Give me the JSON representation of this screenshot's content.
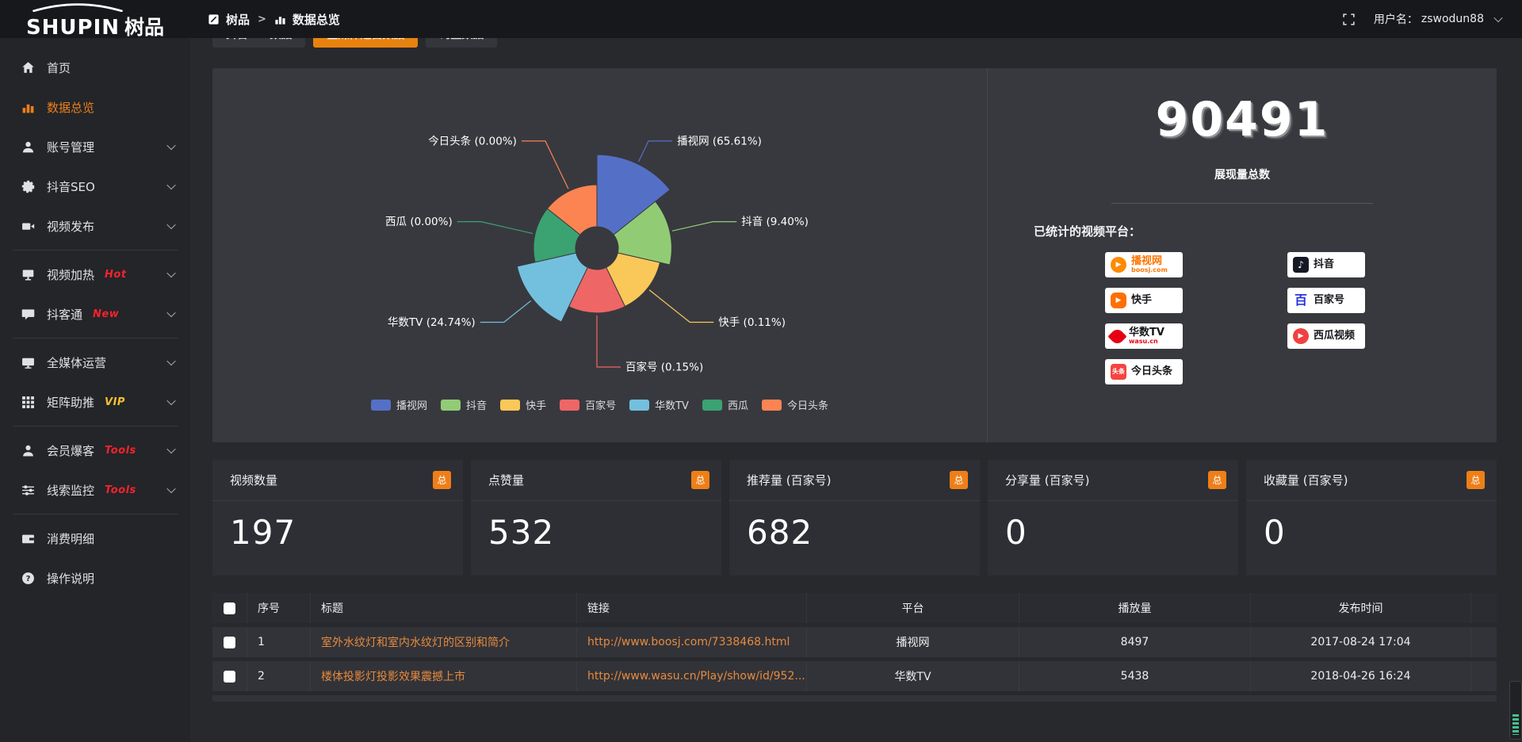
{
  "topbar": {
    "logo": "SHUPIN",
    "logo_cn": "树品",
    "breadcrumb": {
      "root": "树品",
      "separator": ">",
      "current": "数据总览"
    },
    "user_label": "用户名：",
    "username": "zswodun88"
  },
  "sidebar": {
    "items": [
      {
        "icon": "home",
        "label": "首页"
      },
      {
        "icon": "chart",
        "label": "数据总览",
        "active": true
      },
      {
        "icon": "user",
        "label": "账号管理",
        "chevron": true
      },
      {
        "icon": "gear",
        "label": "抖音SEO",
        "chevron": true
      },
      {
        "icon": "publish",
        "label": "视频发布",
        "chevron": true,
        "divider_after": true
      },
      {
        "icon": "heat",
        "label": "视频加热",
        "badge": "Hot",
        "badge_color": "#f5222d",
        "chevron": true
      },
      {
        "icon": "chat",
        "label": "抖客通",
        "badge": "New",
        "badge_color": "#f5222d",
        "chevron": true,
        "divider_after": true
      },
      {
        "icon": "monitor",
        "label": "全媒体运营",
        "chevron": true
      },
      {
        "icon": "grid",
        "label": "矩阵助推",
        "badge": "VIP",
        "badge_color": "#f6c12c",
        "chevron": true,
        "divider_after": true
      },
      {
        "icon": "member",
        "label": "会员爆客",
        "badge": "Tools",
        "badge_color": "#f5222d",
        "chevron": true
      },
      {
        "icon": "sliders",
        "label": "线索监控",
        "badge": "Tools",
        "badge_color": "#f5222d",
        "chevron": true,
        "divider_after": true
      },
      {
        "icon": "wallet",
        "label": "消费明细"
      },
      {
        "icon": "question",
        "label": "操作说明"
      }
    ]
  },
  "tabs": [
    {
      "label": "抖音seo数据"
    },
    {
      "label": "全媒体运营数据",
      "active": true
    },
    {
      "label": "询盘数据"
    }
  ],
  "chart_data": {
    "type": "pie",
    "subtype": "rose",
    "legend_position": "bottom",
    "items": [
      {
        "name": "播视网",
        "percent": 65.61,
        "color": "#5470c6"
      },
      {
        "name": "抖音",
        "percent": 9.4,
        "color": "#91cc75"
      },
      {
        "name": "快手",
        "percent": 0.11,
        "color": "#fac858"
      },
      {
        "name": "百家号",
        "percent": 0.15,
        "color": "#ee6666"
      },
      {
        "name": "华数TV",
        "percent": 24.74,
        "color": "#73c0de"
      },
      {
        "name": "西瓜",
        "percent": 0.0,
        "color": "#3ba272"
      },
      {
        "name": "今日头条",
        "percent": 0.0,
        "color": "#fc8452"
      }
    ]
  },
  "summary": {
    "total": "90491",
    "total_label": "展现量总数",
    "platforms_title": "已统计的视频平台：",
    "platforms": [
      {
        "name": "播视网",
        "sub": "boosj.com",
        "logo": "boosj",
        "logo_color": "#ff8a00",
        "name_color": "#ff7300",
        "sub_color": "#ff7300"
      },
      {
        "name": "快手",
        "logo": "kuaishou",
        "logo_color": "#ff6f00"
      },
      {
        "name": "华数TV",
        "sub": "wasu.cn",
        "logo": "wasu",
        "logo_color": "#e60012",
        "sub_color": "#e60012"
      },
      {
        "name": "今日头条",
        "logo": "toutiao",
        "logo_color": "#f34540",
        "logo_text": "头条"
      },
      {
        "name": "抖音",
        "logo": "douyin",
        "logo_color": "#161823",
        "logo_text": "♪"
      },
      {
        "name": "百家号",
        "logo": "baijia",
        "logo_color": "#2932e1",
        "logo_text": "百"
      },
      {
        "name": "西瓜视频",
        "logo": "xigua",
        "logo_color": "#f04142"
      }
    ]
  },
  "cards": [
    {
      "title": "视频数量",
      "badge": "总",
      "value": "197"
    },
    {
      "title": "点赞量",
      "badge": "总",
      "value": "532"
    },
    {
      "title": "推荐量 (百家号)",
      "badge": "总",
      "value": "682"
    },
    {
      "title": "分享量 (百家号)",
      "badge": "总",
      "value": "0"
    },
    {
      "title": "收藏量 (百家号)",
      "badge": "总",
      "value": "0"
    }
  ],
  "table": {
    "headers": [
      "序号",
      "标题",
      "链接",
      "平台",
      "播放量",
      "发布时间"
    ],
    "rows": [
      {
        "no": "1",
        "title": "室外水纹灯和室内水纹灯的区别和简介",
        "link": "http://www.boosj.com/7338468.html",
        "platform": "播视网",
        "plays": "8497",
        "time": "2017-08-24 17:04"
      },
      {
        "no": "2",
        "title": "楼体投影灯投影效果震撼上市",
        "link": "http://www.wasu.cn/Play/show/id/952...",
        "platform": "华数TV",
        "plays": "5438",
        "time": "2018-04-26 16:24"
      }
    ]
  },
  "colors": {
    "accent": "#ee7f18",
    "tab_active": "#e8820f",
    "link": "#e78a3e",
    "panel_bg": "#38393e"
  }
}
